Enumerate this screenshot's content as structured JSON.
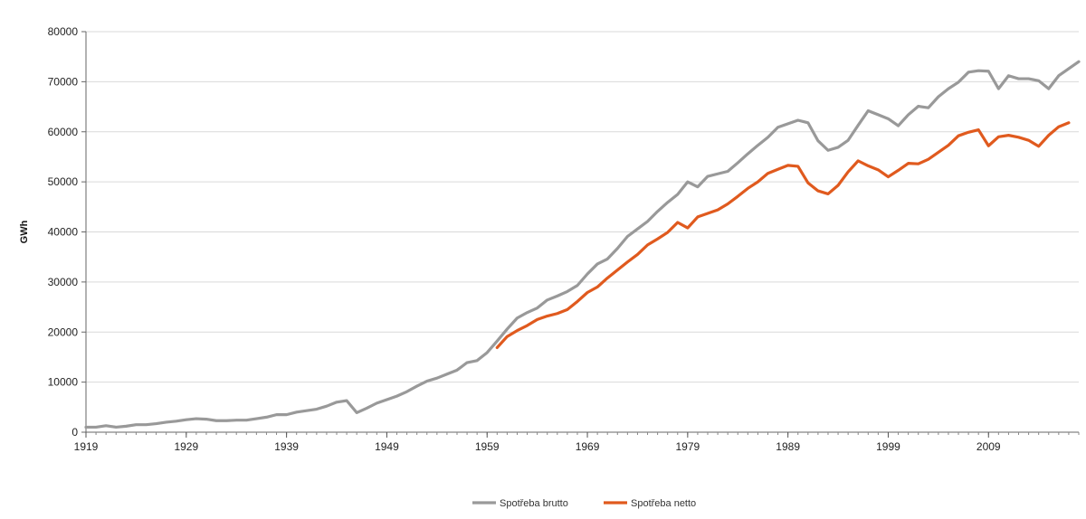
{
  "chart_data": {
    "type": "line",
    "title": "",
    "xlabel": "",
    "ylabel": "GWh",
    "ylim": [
      0,
      80000
    ],
    "yticks": [
      "0",
      "10000",
      "20000",
      "30000",
      "40000",
      "50000",
      "60000",
      "70000",
      "80000"
    ],
    "xlim": [
      1919,
      2018
    ],
    "xticks": [
      "1919",
      "1929",
      "1939",
      "1949",
      "1959",
      "1969",
      "1979",
      "1989",
      "1999",
      "2009"
    ],
    "grid": true,
    "legend_position": "bottom",
    "series": [
      {
        "name": "Spotřeba brutto",
        "color": "#999999",
        "points": [
          [
            1919,
            1000
          ],
          [
            1920,
            1000
          ],
          [
            1921,
            1300
          ],
          [
            1922,
            1000
          ],
          [
            1923,
            1200
          ],
          [
            1924,
            1500
          ],
          [
            1925,
            1500
          ],
          [
            1926,
            1700
          ],
          [
            1927,
            2000
          ],
          [
            1928,
            2200
          ],
          [
            1929,
            2500
          ],
          [
            1930,
            2700
          ],
          [
            1931,
            2600
          ],
          [
            1932,
            2300
          ],
          [
            1933,
            2300
          ],
          [
            1934,
            2400
          ],
          [
            1935,
            2400
          ],
          [
            1936,
            2700
          ],
          [
            1937,
            3000
          ],
          [
            1938,
            3500
          ],
          [
            1939,
            3500
          ],
          [
            1940,
            4000
          ],
          [
            1941,
            4300
          ],
          [
            1942,
            4600
          ],
          [
            1943,
            5200
          ],
          [
            1944,
            6000
          ],
          [
            1945,
            6300
          ],
          [
            1946,
            3900
          ],
          [
            1947,
            4800
          ],
          [
            1948,
            5800
          ],
          [
            1949,
            6500
          ],
          [
            1950,
            7200
          ],
          [
            1951,
            8100
          ],
          [
            1952,
            9200
          ],
          [
            1953,
            10200
          ],
          [
            1954,
            10800
          ],
          [
            1955,
            11600
          ],
          [
            1956,
            12400
          ],
          [
            1957,
            13900
          ],
          [
            1958,
            14300
          ],
          [
            1959,
            15900
          ],
          [
            1960,
            18200
          ],
          [
            1961,
            20600
          ],
          [
            1962,
            22800
          ],
          [
            1963,
            23900
          ],
          [
            1964,
            24800
          ],
          [
            1965,
            26400
          ],
          [
            1966,
            27200
          ],
          [
            1967,
            28100
          ],
          [
            1968,
            29300
          ],
          [
            1969,
            31600
          ],
          [
            1970,
            33600
          ],
          [
            1971,
            34600
          ],
          [
            1972,
            36700
          ],
          [
            1973,
            39100
          ],
          [
            1974,
            40600
          ],
          [
            1975,
            42100
          ],
          [
            1976,
            44100
          ],
          [
            1977,
            45900
          ],
          [
            1978,
            47500
          ],
          [
            1979,
            50000
          ],
          [
            1980,
            49000
          ],
          [
            1981,
            51100
          ],
          [
            1982,
            51600
          ],
          [
            1983,
            52100
          ],
          [
            1984,
            53800
          ],
          [
            1985,
            55600
          ],
          [
            1986,
            57300
          ],
          [
            1987,
            58900
          ],
          [
            1988,
            60900
          ],
          [
            1989,
            61600
          ],
          [
            1990,
            62300
          ],
          [
            1991,
            61800
          ],
          [
            1992,
            58200
          ],
          [
            1993,
            56300
          ],
          [
            1994,
            56900
          ],
          [
            1995,
            58300
          ],
          [
            1996,
            61300
          ],
          [
            1997,
            64200
          ],
          [
            1998,
            63400
          ],
          [
            1999,
            62600
          ],
          [
            2000,
            61200
          ],
          [
            2001,
            63400
          ],
          [
            2002,
            65100
          ],
          [
            2003,
            64800
          ],
          [
            2004,
            67000
          ],
          [
            2005,
            68600
          ],
          [
            2006,
            69900
          ],
          [
            2007,
            71900
          ],
          [
            2008,
            72200
          ],
          [
            2009,
            72100
          ],
          [
            2010,
            68600
          ],
          [
            2011,
            71200
          ],
          [
            2012,
            70600
          ],
          [
            2013,
            70600
          ],
          [
            2014,
            70200
          ],
          [
            2015,
            68600
          ],
          [
            2016,
            71200
          ],
          [
            2017,
            72600
          ],
          [
            2018,
            74000
          ]
        ]
      },
      {
        "name": "Spotřeba netto",
        "color": "#e05a1e",
        "points": [
          [
            1960,
            16900
          ],
          [
            1961,
            19100
          ],
          [
            1962,
            20300
          ],
          [
            1963,
            21300
          ],
          [
            1964,
            22500
          ],
          [
            1965,
            23200
          ],
          [
            1966,
            23700
          ],
          [
            1967,
            24500
          ],
          [
            1968,
            26100
          ],
          [
            1969,
            27900
          ],
          [
            1970,
            29000
          ],
          [
            1971,
            30800
          ],
          [
            1972,
            32400
          ],
          [
            1973,
            34000
          ],
          [
            1974,
            35500
          ],
          [
            1975,
            37400
          ],
          [
            1976,
            38600
          ],
          [
            1977,
            39900
          ],
          [
            1978,
            41900
          ],
          [
            1979,
            40800
          ],
          [
            1980,
            43000
          ],
          [
            1981,
            43700
          ],
          [
            1982,
            44400
          ],
          [
            1983,
            45600
          ],
          [
            1984,
            47100
          ],
          [
            1985,
            48700
          ],
          [
            1986,
            50000
          ],
          [
            1987,
            51700
          ],
          [
            1988,
            52500
          ],
          [
            1989,
            53300
          ],
          [
            1990,
            53100
          ],
          [
            1991,
            49800
          ],
          [
            1992,
            48200
          ],
          [
            1993,
            47600
          ],
          [
            1994,
            49300
          ],
          [
            1995,
            52000
          ],
          [
            1996,
            54200
          ],
          [
            1997,
            53200
          ],
          [
            1998,
            52400
          ],
          [
            1999,
            51000
          ],
          [
            2000,
            52300
          ],
          [
            2001,
            53700
          ],
          [
            2002,
            53600
          ],
          [
            2003,
            54500
          ],
          [
            2004,
            55900
          ],
          [
            2005,
            57300
          ],
          [
            2006,
            59200
          ],
          [
            2007,
            59900
          ],
          [
            2008,
            60400
          ],
          [
            2009,
            57200
          ],
          [
            2010,
            59000
          ],
          [
            2011,
            59300
          ],
          [
            2012,
            58900
          ],
          [
            2013,
            58300
          ],
          [
            2014,
            57100
          ],
          [
            2015,
            59300
          ],
          [
            2016,
            61000
          ],
          [
            2017,
            61800
          ]
        ]
      }
    ]
  }
}
